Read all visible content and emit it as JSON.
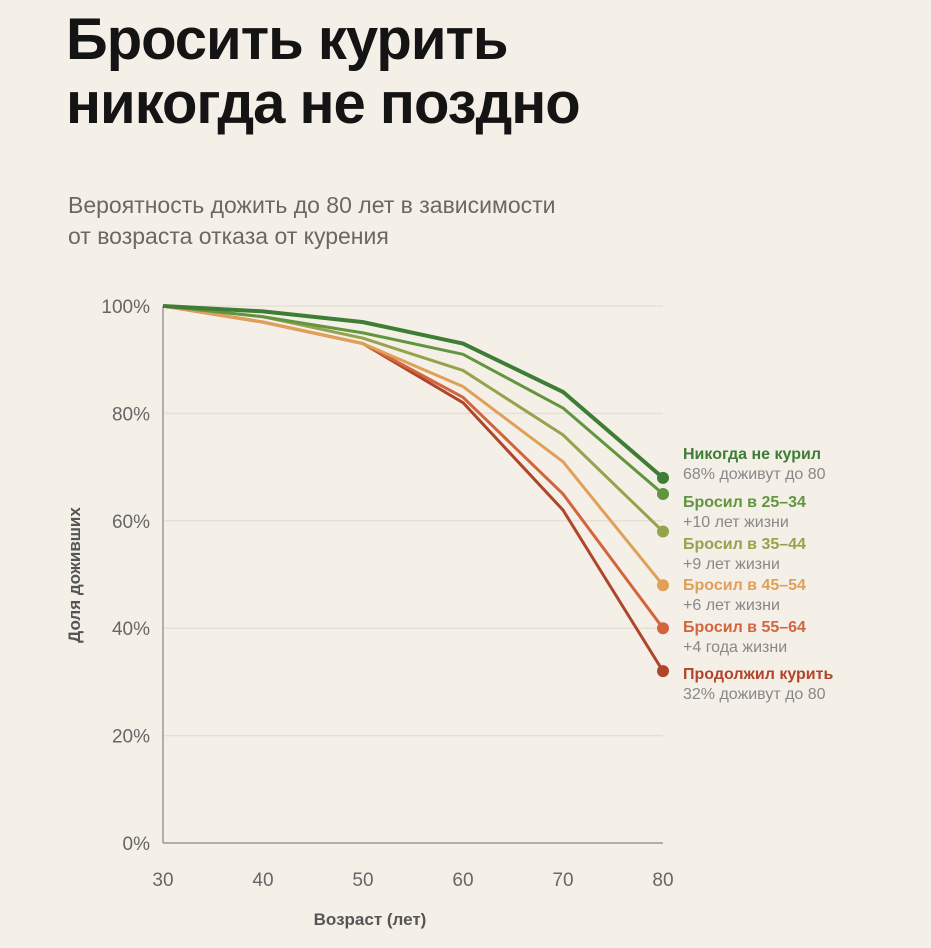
{
  "title_line1": "Бросить курить",
  "title_line2": "никогда не поздно",
  "subtitle_line1": "Вероятность дожить до 80 лет в зависимости",
  "subtitle_line2": "от возраста отказа от курения",
  "chart_data": {
    "type": "line",
    "title": "Бросить курить никогда не поздно",
    "subtitle": "Вероятность дожить до 80 лет в зависимости от возраста отказа от курения",
    "xlabel": "Возраст (лет)",
    "ylabel": "Доля доживших",
    "x": [
      30,
      40,
      50,
      60,
      70,
      80
    ],
    "xlim": [
      30,
      80
    ],
    "ylim": [
      0,
      100
    ],
    "xticks": [
      "30",
      "40",
      "50",
      "60",
      "70",
      "80"
    ],
    "yticks": [
      "0%",
      "20%",
      "40%",
      "60%",
      "80%",
      "100%"
    ],
    "grid": true,
    "legend_placement": "right",
    "series": [
      {
        "name": "Никогда не курил",
        "note": "68% доживут до 80",
        "color": "#3f7c36",
        "values": [
          100,
          99,
          97,
          93,
          84,
          68
        ]
      },
      {
        "name": "Бросил в 25–34",
        "note": "+10 лет жизни",
        "color": "#62953f",
        "values": [
          100,
          98,
          95,
          91,
          81,
          65
        ]
      },
      {
        "name": "Бросил в 35–44",
        "note": "+9 лет жизни",
        "color": "#95a34c",
        "values": [
          100,
          98,
          94,
          88,
          76,
          58
        ]
      },
      {
        "name": "Бросил в 45–54",
        "note": "+6 лет жизни",
        "color": "#e0a058",
        "values": [
          100,
          97,
          93,
          85,
          71,
          48
        ]
      },
      {
        "name": "Бросил в 55–64",
        "note": "+4 года жизни",
        "color": "#d2643e",
        "values": [
          100,
          97,
          93,
          83,
          65,
          40
        ]
      },
      {
        "name": "Продолжил курить",
        "note": "32% доживут до 80",
        "color": "#b1452c",
        "values": [
          100,
          97,
          93,
          82,
          62,
          32
        ]
      }
    ]
  }
}
